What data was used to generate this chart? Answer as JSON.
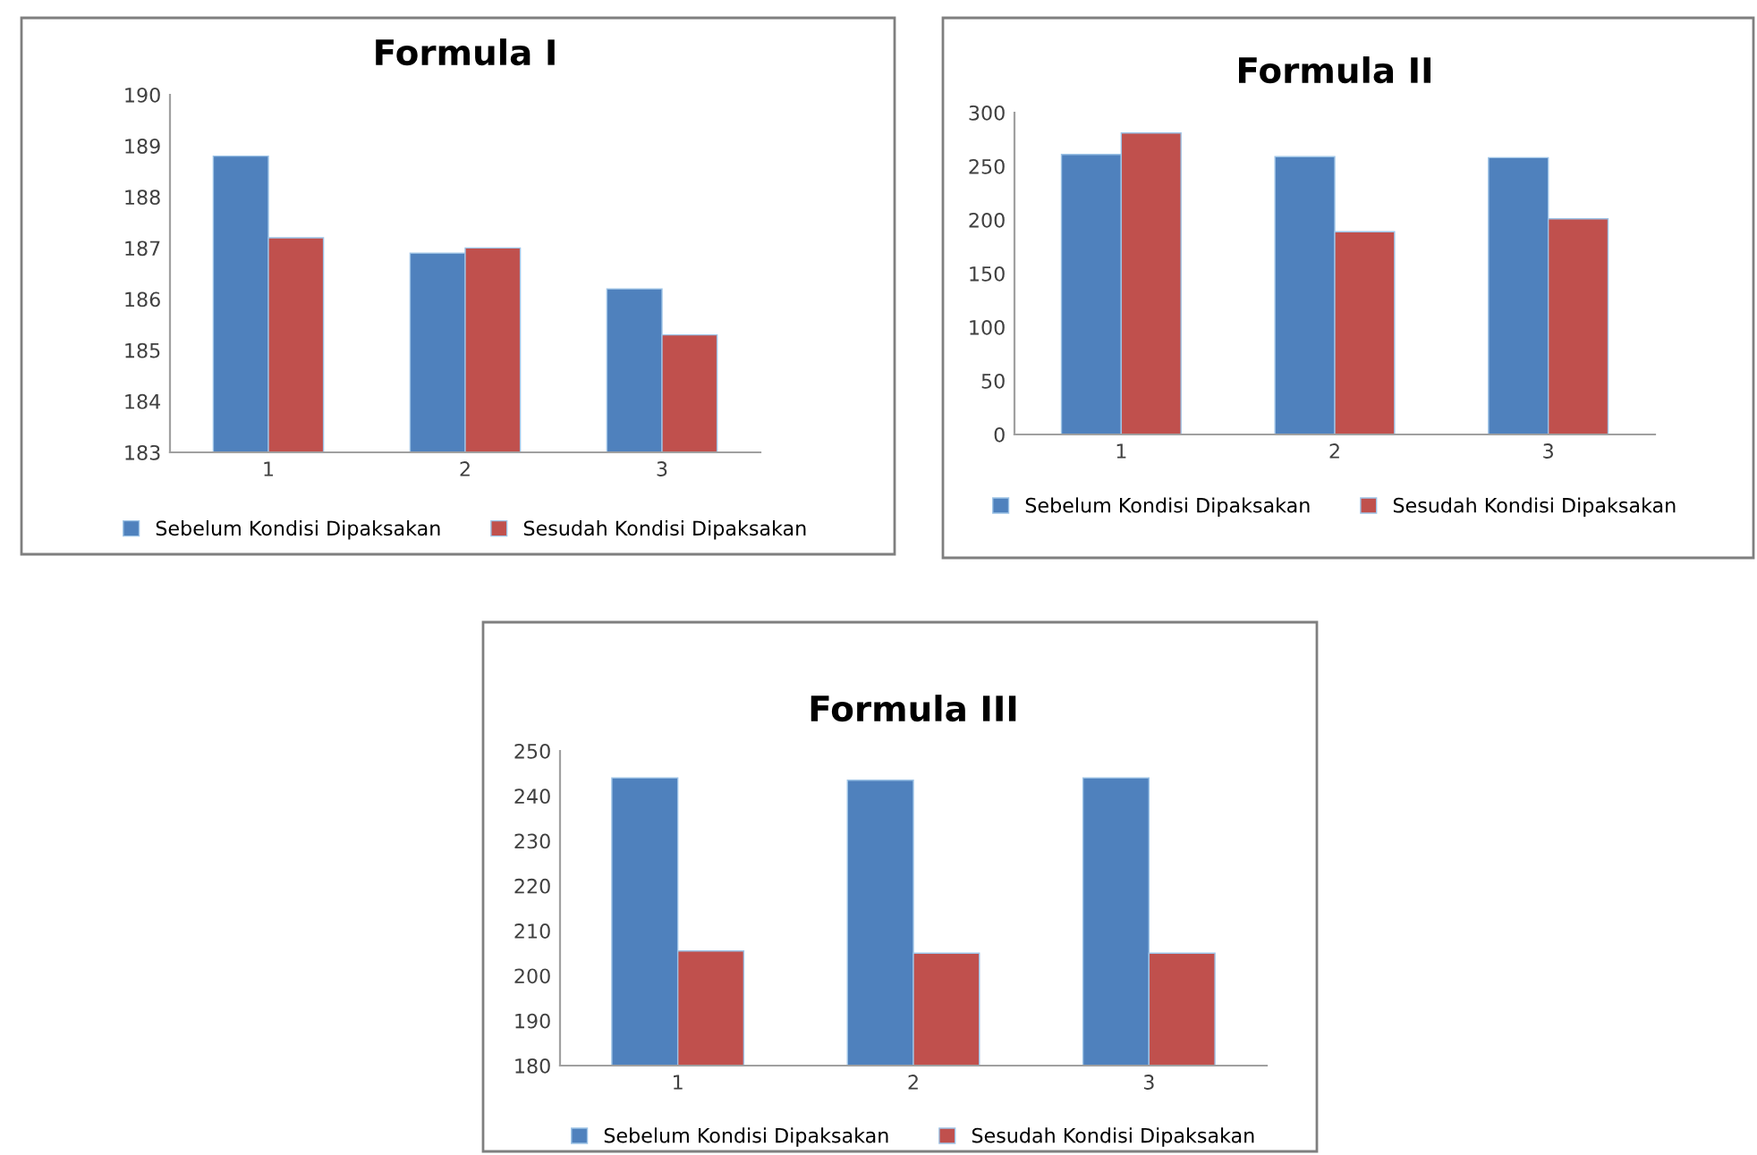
{
  "chart_data": [
    {
      "type": "bar",
      "title": "Formula I",
      "categories": [
        "1",
        "2",
        "3"
      ],
      "ylim": [
        183,
        190
      ],
      "yticks": [
        183,
        184,
        185,
        186,
        187,
        188,
        189,
        190
      ],
      "grid": false,
      "legend": "bottom",
      "series": [
        {
          "name": "Sebelum Kondisi Dipaksakan",
          "color": "#4f81bd",
          "values": [
            188.8,
            186.9,
            186.2
          ]
        },
        {
          "name": "Sesudah Kondisi Dipaksakan",
          "color": "#c0504d",
          "values": [
            187.2,
            187.0,
            185.3
          ]
        }
      ]
    },
    {
      "type": "bar",
      "title": "Formula II",
      "categories": [
        "1",
        "2",
        "3"
      ],
      "ylim": [
        0,
        300
      ],
      "yticks": [
        0,
        50,
        100,
        150,
        200,
        250,
        300
      ],
      "grid": false,
      "legend": "bottom",
      "series": [
        {
          "name": "Sebelum Kondisi Dipaksakan",
          "color": "#4f81bd",
          "values": [
            261,
            259,
            258
          ]
        },
        {
          "name": "Sesudah Kondisi Dipaksakan",
          "color": "#c0504d",
          "values": [
            281,
            189,
            201
          ]
        }
      ]
    },
    {
      "type": "bar",
      "title": "Formula III",
      "categories": [
        "1",
        "2",
        "3"
      ],
      "ylim": [
        180,
        250
      ],
      "yticks": [
        180,
        190,
        200,
        210,
        220,
        230,
        240,
        250
      ],
      "grid": false,
      "legend": "bottom",
      "series": [
        {
          "name": "Sebelum Kondisi Dipaksakan",
          "color": "#4f81bd",
          "values": [
            244,
            243.5,
            244
          ]
        },
        {
          "name": "Sesudah Kondisi Dipaksakan",
          "color": "#c0504d",
          "values": [
            205.5,
            205,
            205
          ]
        }
      ]
    }
  ]
}
